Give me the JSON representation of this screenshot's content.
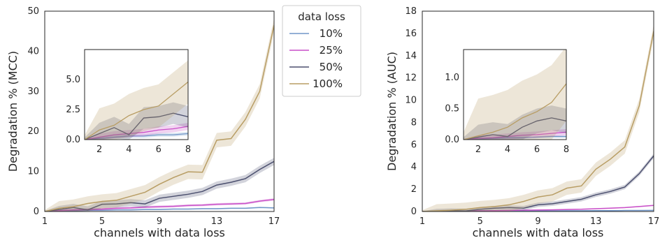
{
  "legend": {
    "title": "data loss",
    "entries": [
      {
        "label": "10%",
        "color": "#7096c8"
      },
      {
        "label": "25%",
        "color": "#c94fc8"
      },
      {
        "label": "50%",
        "color": "#4b4f6e"
      },
      {
        "label": "100%",
        "color": "#b89d64"
      }
    ]
  },
  "chart_data": [
    {
      "type": "line",
      "xlabel": "channels with data loss",
      "ylabel": "Degradation % (MCC)",
      "xlim": [
        1,
        17
      ],
      "ylim": [
        0,
        50
      ],
      "xticks": [
        1,
        5,
        9,
        13,
        17
      ],
      "yticks": [
        0,
        10,
        20,
        30,
        40,
        50
      ],
      "x": [
        1,
        2,
        3,
        4,
        5,
        6,
        7,
        8,
        9,
        10,
        11,
        12,
        13,
        14,
        15,
        16,
        17
      ],
      "series": [
        {
          "name": "10%",
          "values": [
            0,
            0.1,
            0.2,
            0.3,
            0.3,
            0.4,
            0.4,
            0.5,
            0.5,
            0.6,
            0.6,
            0.7,
            0.7,
            0.8,
            0.8,
            1.0,
            0.9
          ],
          "band": 0.15
        },
        {
          "name": "25%",
          "values": [
            0,
            0.2,
            0.4,
            0.5,
            0.6,
            0.8,
            0.9,
            1.1,
            1.2,
            1.3,
            1.5,
            1.6,
            1.8,
            1.9,
            2.0,
            2.6,
            3.0
          ],
          "band": 0.3
        },
        {
          "name": "50%",
          "values": [
            0,
            0.5,
            1.0,
            0.4,
            1.8,
            1.9,
            2.2,
            1.9,
            3.3,
            3.8,
            4.3,
            5.0,
            6.6,
            7.3,
            8.2,
            10.5,
            12.5
          ],
          "band": 0.9
        },
        {
          "name": "100%",
          "values": [
            0,
            0.8,
            1.2,
            2.0,
            2.5,
            2.8,
            3.8,
            4.8,
            6.8,
            8.5,
            9.9,
            9.8,
            17.8,
            18.2,
            23.0,
            30.0,
            46.5
          ],
          "band": 1.8
        }
      ],
      "inset": {
        "xlim": [
          1,
          8
        ],
        "ylim": [
          0,
          7.5
        ],
        "xticks": [
          2,
          4,
          6,
          8
        ],
        "yticks": [
          0.0,
          2.5,
          5.0
        ],
        "ytick_labels": [
          "0.0",
          "2.5",
          "5.0"
        ]
      }
    },
    {
      "type": "line",
      "xlabel": "channels with data loss",
      "ylabel": "Degradation % (AUC)",
      "xlim": [
        1,
        17
      ],
      "ylim": [
        0,
        18
      ],
      "xticks": [
        1,
        5,
        9,
        13,
        17
      ],
      "yticks": [
        0,
        2,
        4,
        6,
        8,
        10,
        12,
        14,
        16,
        18
      ],
      "x": [
        1,
        2,
        3,
        4,
        5,
        6,
        7,
        8,
        9,
        10,
        11,
        12,
        13,
        14,
        15,
        16,
        17
      ],
      "series": [
        {
          "name": "10%",
          "values": [
            0,
            0.01,
            0.02,
            0.03,
            0.03,
            0.04,
            0.05,
            0.05,
            0.06,
            0.06,
            0.07,
            0.07,
            0.08,
            0.08,
            0.09,
            0.09,
            0.1
          ],
          "band": 0.02
        },
        {
          "name": "25%",
          "values": [
            0,
            0.02,
            0.03,
            0.05,
            0.07,
            0.08,
            0.1,
            0.12,
            0.13,
            0.15,
            0.18,
            0.2,
            0.25,
            0.3,
            0.35,
            0.45,
            0.55
          ],
          "band": 0.05
        },
        {
          "name": "50%",
          "values": [
            0,
            0.04,
            0.08,
            0.05,
            0.2,
            0.3,
            0.35,
            0.3,
            0.6,
            0.7,
            0.9,
            1.1,
            1.5,
            1.8,
            2.2,
            3.4,
            5.0
          ],
          "band": 0.2
        },
        {
          "name": "100%",
          "values": [
            0,
            0.06,
            0.12,
            0.2,
            0.35,
            0.45,
            0.6,
            0.9,
            1.3,
            1.5,
            2.1,
            2.3,
            3.8,
            4.7,
            5.8,
            9.5,
            16.2
          ],
          "band": 0.6
        }
      ],
      "inset": {
        "xlim": [
          1,
          8
        ],
        "ylim": [
          0,
          1.45
        ],
        "xticks": [
          2,
          4,
          6,
          8
        ],
        "yticks": [
          0.0,
          0.5,
          1.0
        ],
        "ytick_labels": [
          "0.0",
          "0.5",
          "1.0"
        ]
      }
    }
  ]
}
